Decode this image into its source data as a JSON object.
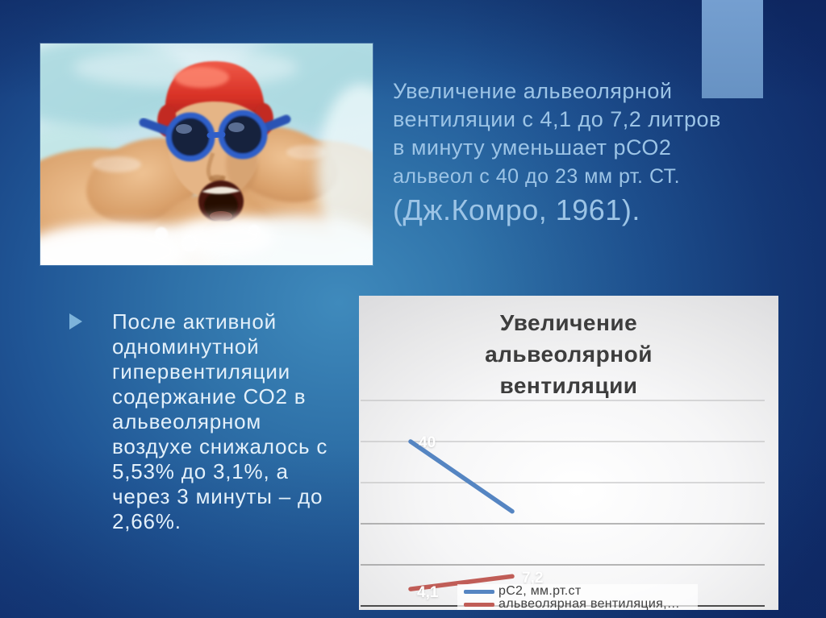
{
  "slide_title_block": {
    "lines": [
      "Увеличение альвеолярной",
      "вентиляции с 4,1 до 7,2 литров",
      "в минуту уменьшает рСО2",
      "альвеол с 40 до 23 мм рт. СТ."
    ],
    "citation": "(Дж.Комро, 1961)."
  },
  "bullet_block": {
    "lines": [
      "После активной",
      "одноминутной",
      "гипервентиляции",
      "содержание СО2 в",
      "альвеолярном",
      "воздухе снижалось с",
      "5,53% до 3,1%, а",
      "через 3 минуты – до",
      "2,66%."
    ]
  },
  "photo": {
    "description": "Swimmer in red swim cap and blue goggles, mouth open, splashing in pool water"
  },
  "colors": {
    "background_center": "#3F8ABC",
    "background_corner": "#123173",
    "accent_rect": "#6D99CA",
    "title_text": "#9CC4E6",
    "bullet_text": "#E3F0FA",
    "chart_text": "#3D3D3D",
    "series_blue": "#5585C2",
    "series_red": "#C05D57"
  },
  "chart_data": {
    "type": "line",
    "title": "Увеличение альвеолярной вентиляции",
    "title_lines": [
      "Увеличение",
      "альвеолярной",
      "вентиляции"
    ],
    "ylim": [
      0,
      50
    ],
    "gridline_step": 10,
    "grid": "horizontal",
    "x_tick_labels_visible": false,
    "legend_position": "bottom-center",
    "series": [
      {
        "name": "рС2, мм.рт.ст",
        "color": "#5585C2",
        "values": [
          40,
          23
        ],
        "point_labels": [
          "40",
          ""
        ]
      },
      {
        "name": "альвеолярная вентиляция,…",
        "color": "#C05D57",
        "values": [
          4.1,
          7.2
        ],
        "point_labels": [
          "4,1",
          "7,2"
        ]
      }
    ]
  }
}
